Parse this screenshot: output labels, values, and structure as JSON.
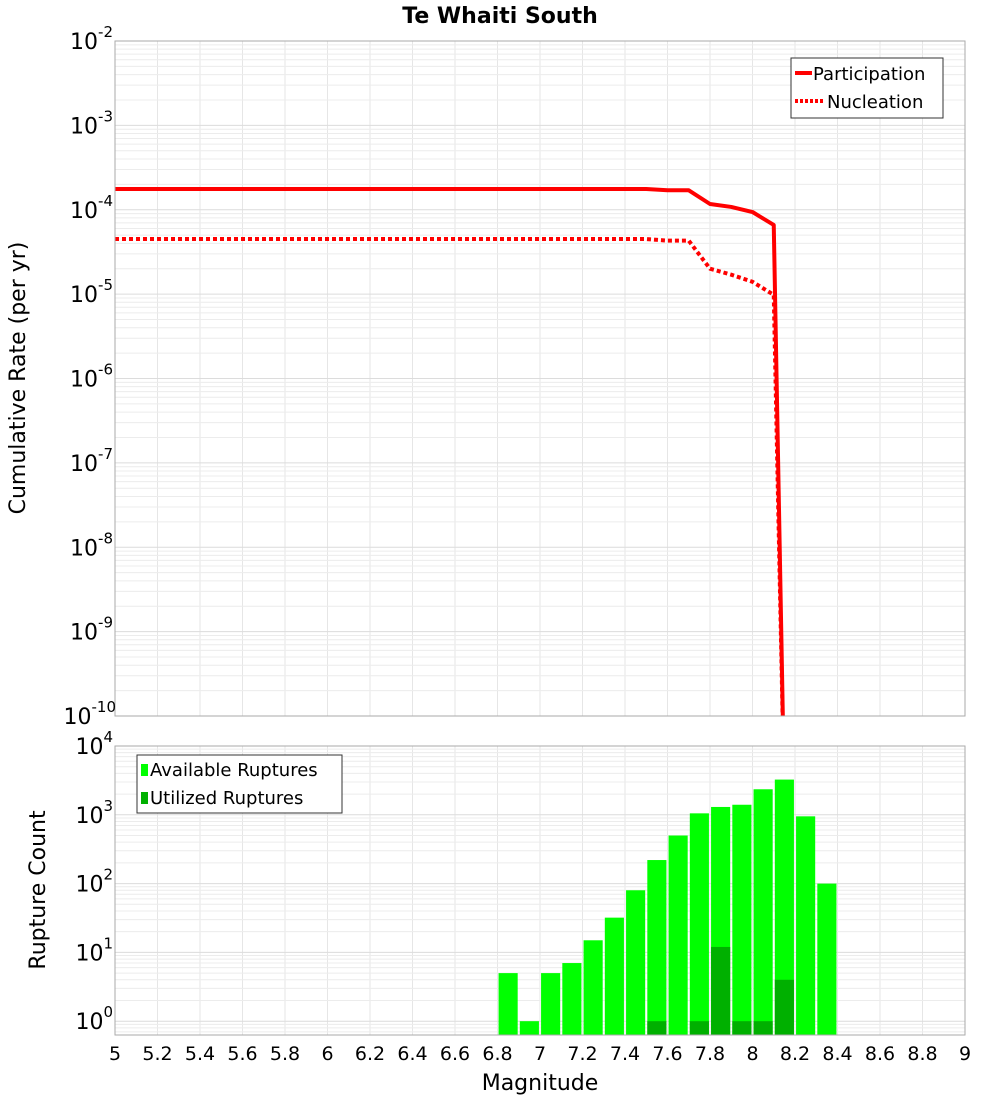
{
  "chart_data": [
    {
      "type": "line",
      "title": "Te Whaiti South",
      "xlabel": "Magnitude",
      "ylabel": "Cumulative Rate (per yr)",
      "xlim": [
        5,
        9
      ],
      "ylim": [
        1e-10,
        0.01
      ],
      "yscale": "log",
      "grid": true,
      "legend_position": "top-right",
      "y_tick_exponents": [
        -2,
        -3,
        -4,
        -5,
        -6,
        -7,
        -8,
        -9,
        -10
      ],
      "series": [
        {
          "name": "Participation",
          "style": "solid",
          "color": "#ff0000",
          "x": [
            5.0,
            7.5,
            7.6,
            7.7,
            7.8,
            7.9,
            8.0,
            8.1,
            8.15
          ],
          "y": [
            0.000176,
            0.000176,
            0.00017,
            0.00017,
            0.000117,
            0.000108,
            9.4e-05,
            6.6e-05,
            1e-11
          ]
        },
        {
          "name": "Nucleation",
          "style": "dotted",
          "color": "#ff0000",
          "x": [
            5.0,
            7.5,
            7.6,
            7.7,
            7.8,
            7.9,
            8.0,
            8.1,
            8.15
          ],
          "y": [
            4.5e-05,
            4.5e-05,
            4.3e-05,
            4.3e-05,
            2e-05,
            1.7e-05,
            1.4e-05,
            9.8e-06,
            1e-11
          ]
        }
      ]
    },
    {
      "type": "bar",
      "xlabel": "Magnitude",
      "ylabel": "Rupture Count",
      "xlim": [
        5,
        9
      ],
      "ylim": [
        0.63,
        10000.0
      ],
      "yscale": "log",
      "grid": true,
      "legend_position": "top-left",
      "y_tick_exponents": [
        4,
        3,
        2,
        1,
        0
      ],
      "x_ticks": [
        "5",
        "5.2",
        "5.4",
        "5.6",
        "5.8",
        "6",
        "6.2",
        "6.4",
        "6.6",
        "6.8",
        "7",
        "7.2",
        "7.4",
        "7.6",
        "7.8",
        "8",
        "8.2",
        "8.4",
        "8.6",
        "8.8",
        "9"
      ],
      "x": [
        6.85,
        6.95,
        7.05,
        7.15,
        7.25,
        7.35,
        7.45,
        7.55,
        7.65,
        7.75,
        7.85,
        7.95,
        8.05,
        8.15,
        8.25,
        8.35
      ],
      "series": [
        {
          "name": "Available Ruptures",
          "color": "#00ff00",
          "values": [
            5,
            1,
            5,
            7,
            15,
            32,
            80,
            220,
            500,
            1050,
            1300,
            1400,
            2350,
            3250,
            950,
            100
          ]
        },
        {
          "name": "Utilized Ruptures",
          "color": "#00b000",
          "values": [
            0,
            0,
            0,
            0,
            0,
            0,
            0,
            1,
            0,
            1,
            12,
            1,
            1,
            4,
            0,
            0
          ]
        }
      ]
    }
  ]
}
